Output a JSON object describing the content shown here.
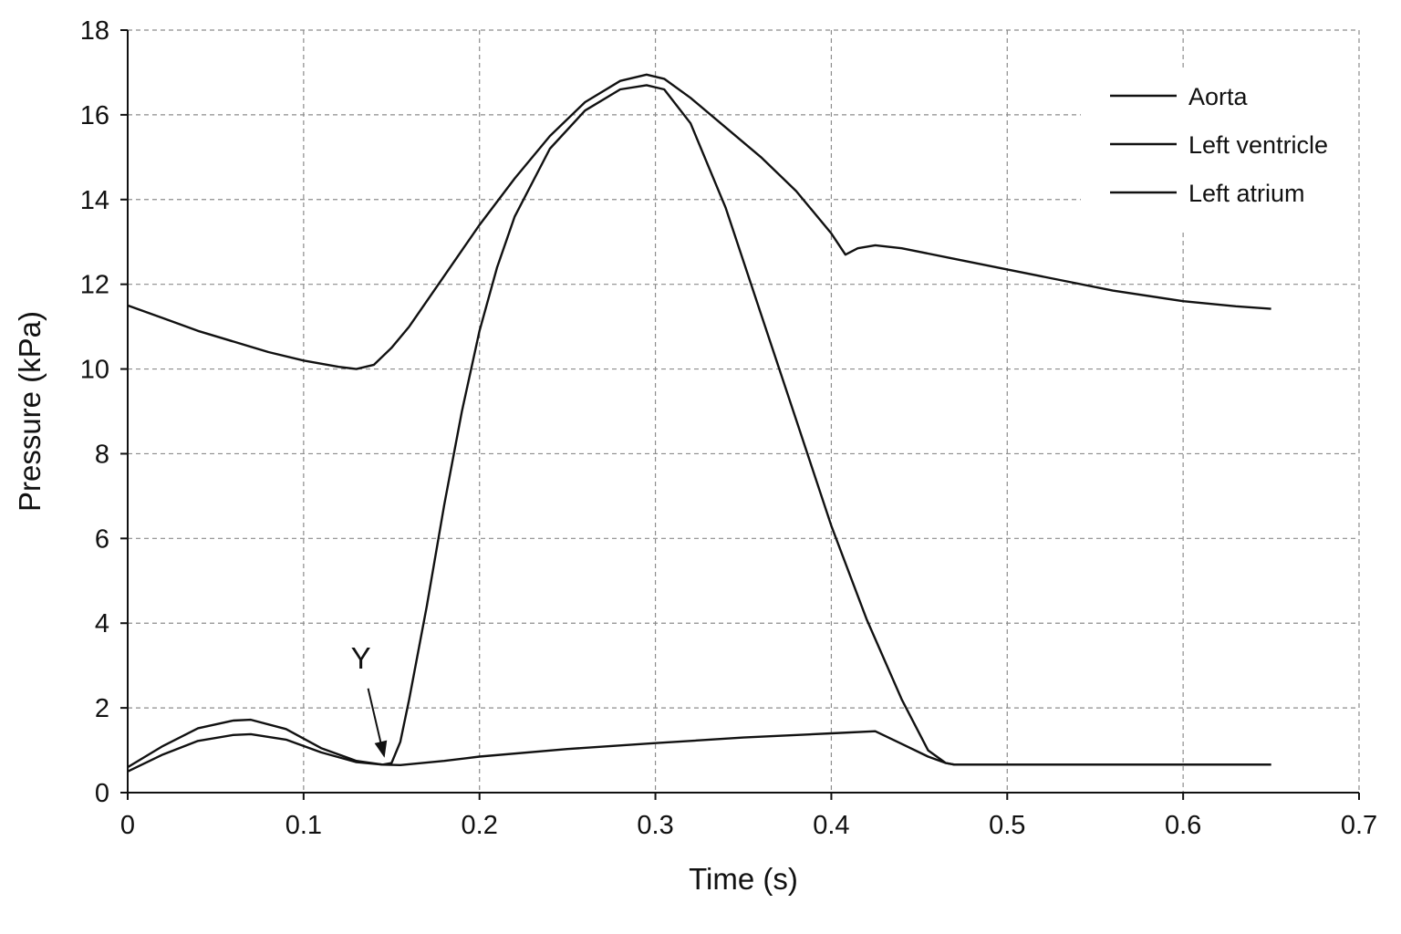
{
  "chart_data": {
    "type": "line",
    "xlabel": "Time (s)",
    "ylabel": "Pressure (kPa)",
    "xlim": [
      0,
      0.7
    ],
    "ylim": [
      0,
      18
    ],
    "xticks": [
      0,
      0.1,
      0.2,
      0.3,
      0.4,
      0.5,
      0.6,
      0.7
    ],
    "xtick_labels": [
      "0",
      "0.1",
      "0.2",
      "0.3",
      "0.4",
      "0.5",
      "0.6",
      "0.7"
    ],
    "yticks": [
      0,
      2,
      4,
      6,
      8,
      10,
      12,
      14,
      16,
      18
    ],
    "ytick_labels": [
      "0",
      "2",
      "4",
      "6",
      "8",
      "10",
      "12",
      "14",
      "16",
      "18"
    ],
    "grid": true,
    "legend_position": "top-right",
    "line_color": "#111111",
    "series": [
      {
        "name": "Aorta",
        "points": [
          [
            0,
            11.5
          ],
          [
            0.02,
            11.2
          ],
          [
            0.04,
            10.9
          ],
          [
            0.06,
            10.65
          ],
          [
            0.08,
            10.4
          ],
          [
            0.1,
            10.2
          ],
          [
            0.12,
            10.05
          ],
          [
            0.13,
            10.0
          ],
          [
            0.14,
            10.1
          ],
          [
            0.15,
            10.5
          ],
          [
            0.16,
            11.0
          ],
          [
            0.18,
            12.2
          ],
          [
            0.2,
            13.4
          ],
          [
            0.22,
            14.5
          ],
          [
            0.24,
            15.5
          ],
          [
            0.26,
            16.3
          ],
          [
            0.28,
            16.8
          ],
          [
            0.295,
            16.95
          ],
          [
            0.305,
            16.85
          ],
          [
            0.32,
            16.4
          ],
          [
            0.34,
            15.7
          ],
          [
            0.36,
            15.0
          ],
          [
            0.38,
            14.2
          ],
          [
            0.4,
            13.2
          ],
          [
            0.408,
            12.7
          ],
          [
            0.415,
            12.85
          ],
          [
            0.425,
            12.92
          ],
          [
            0.44,
            12.85
          ],
          [
            0.47,
            12.6
          ],
          [
            0.5,
            12.35
          ],
          [
            0.53,
            12.1
          ],
          [
            0.56,
            11.85
          ],
          [
            0.6,
            11.6
          ],
          [
            0.63,
            11.48
          ],
          [
            0.65,
            11.42
          ]
        ]
      },
      {
        "name": "Left ventricle",
        "points": [
          [
            0,
            0.5
          ],
          [
            0.02,
            0.9
          ],
          [
            0.04,
            1.22
          ],
          [
            0.06,
            1.36
          ],
          [
            0.07,
            1.38
          ],
          [
            0.09,
            1.25
          ],
          [
            0.11,
            0.95
          ],
          [
            0.13,
            0.72
          ],
          [
            0.145,
            0.66
          ],
          [
            0.15,
            0.7
          ],
          [
            0.155,
            1.2
          ],
          [
            0.16,
            2.2
          ],
          [
            0.17,
            4.4
          ],
          [
            0.18,
            6.8
          ],
          [
            0.19,
            9.0
          ],
          [
            0.2,
            10.9
          ],
          [
            0.21,
            12.4
          ],
          [
            0.22,
            13.6
          ],
          [
            0.24,
            15.2
          ],
          [
            0.26,
            16.1
          ],
          [
            0.28,
            16.6
          ],
          [
            0.295,
            16.7
          ],
          [
            0.305,
            16.6
          ],
          [
            0.32,
            15.8
          ],
          [
            0.34,
            13.8
          ],
          [
            0.36,
            11.3
          ],
          [
            0.38,
            8.8
          ],
          [
            0.4,
            6.3
          ],
          [
            0.42,
            4.1
          ],
          [
            0.44,
            2.2
          ],
          [
            0.455,
            1.0
          ],
          [
            0.465,
            0.7
          ],
          [
            0.47,
            0.66
          ],
          [
            0.5,
            0.66
          ],
          [
            0.55,
            0.66
          ],
          [
            0.6,
            0.66
          ],
          [
            0.65,
            0.66
          ]
        ]
      },
      {
        "name": "Left atrium",
        "points": [
          [
            0,
            0.6
          ],
          [
            0.02,
            1.1
          ],
          [
            0.04,
            1.52
          ],
          [
            0.06,
            1.7
          ],
          [
            0.07,
            1.72
          ],
          [
            0.09,
            1.5
          ],
          [
            0.11,
            1.05
          ],
          [
            0.13,
            0.75
          ],
          [
            0.145,
            0.66
          ],
          [
            0.155,
            0.65
          ],
          [
            0.18,
            0.75
          ],
          [
            0.2,
            0.85
          ],
          [
            0.25,
            1.03
          ],
          [
            0.3,
            1.17
          ],
          [
            0.35,
            1.3
          ],
          [
            0.4,
            1.4
          ],
          [
            0.425,
            1.45
          ],
          [
            0.44,
            1.15
          ],
          [
            0.455,
            0.85
          ],
          [
            0.465,
            0.7
          ],
          [
            0.47,
            0.66
          ],
          [
            0.5,
            0.66
          ],
          [
            0.55,
            0.66
          ],
          [
            0.6,
            0.66
          ],
          [
            0.65,
            0.66
          ]
        ]
      }
    ],
    "annotations": [
      {
        "text": "Y",
        "x": 0.146,
        "y": 0.78
      }
    ]
  }
}
